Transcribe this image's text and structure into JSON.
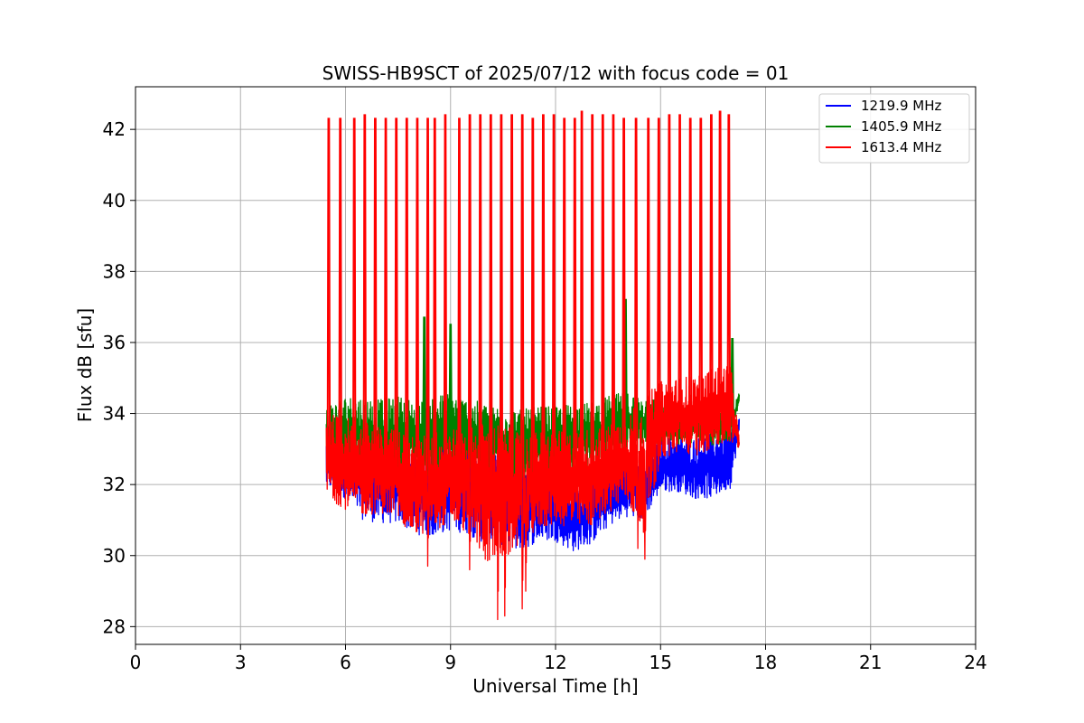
{
  "chart_data": {
    "type": "line",
    "title": "SWISS-HB9SCT of 2025/07/12 with focus code = 01",
    "xlabel": "Universal Time [h]",
    "ylabel": "Flux dB [sfu]",
    "xlim": [
      0,
      24
    ],
    "ylim": [
      27.5,
      43.2
    ],
    "xticks": [
      0,
      3,
      6,
      9,
      12,
      15,
      18,
      21,
      24
    ],
    "yticks": [
      28,
      30,
      32,
      34,
      36,
      38,
      40,
      42
    ],
    "grid": true,
    "legend_position": "top-right",
    "x_start": 5.45,
    "x_end": 17.25,
    "series": [
      {
        "name": "1219.9 MHz",
        "color": "#0000ff",
        "base_profile": {
          "x": [
            5.5,
            6.0,
            6.5,
            7.0,
            7.5,
            8.0,
            8.5,
            9.0,
            9.5,
            10.0,
            10.5,
            11.0,
            11.5,
            12.0,
            12.5,
            13.0,
            13.5,
            14.0,
            14.5,
            15.0,
            15.5,
            16.0,
            16.5,
            17.0,
            17.25
          ],
          "low": [
            31.9,
            31.6,
            31.0,
            30.9,
            30.9,
            30.6,
            30.5,
            30.7,
            30.6,
            30.3,
            30.3,
            30.1,
            30.4,
            30.4,
            30.1,
            30.3,
            30.8,
            31.1,
            31.0,
            31.8,
            31.8,
            31.6,
            31.6,
            31.9,
            33.4
          ],
          "high": [
            33.3,
            33.2,
            33.2,
            33.0,
            33.0,
            33.0,
            33.3,
            33.4,
            33.3,
            33.0,
            32.8,
            32.6,
            32.4,
            32.3,
            32.0,
            32.3,
            32.5,
            32.7,
            32.7,
            33.3,
            33.4,
            33.3,
            33.5,
            33.6,
            33.9
          ]
        }
      },
      {
        "name": "1405.9 MHz",
        "color": "#008000",
        "base_profile": {
          "x": [
            5.5,
            6.0,
            6.5,
            7.0,
            7.5,
            8.0,
            8.5,
            9.0,
            9.5,
            10.0,
            10.5,
            11.0,
            11.5,
            12.0,
            12.5,
            13.0,
            13.5,
            14.0,
            14.5,
            15.0,
            15.5,
            16.0,
            16.5,
            17.0,
            17.25
          ],
          "low": [
            32.4,
            32.3,
            32.3,
            32.0,
            32.0,
            32.0,
            32.3,
            32.5,
            32.4,
            32.3,
            32.2,
            32.1,
            32.2,
            32.3,
            32.3,
            32.4,
            32.6,
            32.8,
            32.9,
            33.2,
            33.1,
            33.2,
            33.1,
            33.2,
            34.3
          ],
          "high": [
            34.3,
            34.5,
            34.5,
            34.4,
            34.5,
            34.4,
            34.5,
            34.6,
            34.4,
            34.3,
            34.2,
            34.1,
            34.2,
            34.2,
            34.3,
            34.3,
            34.5,
            34.6,
            34.5,
            34.4,
            34.2,
            34.2,
            34.1,
            34.0,
            34.6
          ]
        },
        "spikes": [
          {
            "x": 8.25,
            "y": 36.7
          },
          {
            "x": 9.0,
            "y": 36.5
          },
          {
            "x": 14.0,
            "y": 37.2
          },
          {
            "x": 17.05,
            "y": 36.1
          }
        ]
      },
      {
        "name": "1613.4 MHz",
        "color": "#ff0000",
        "base_profile": {
          "x": [
            5.5,
            6.0,
            6.5,
            7.0,
            7.5,
            8.0,
            8.5,
            9.0,
            9.5,
            10.0,
            10.5,
            11.0,
            11.5,
            12.0,
            12.5,
            13.0,
            13.5,
            14.0,
            14.5,
            15.0,
            15.5,
            16.0,
            16.5,
            17.0,
            17.25
          ],
          "low": [
            31.6,
            31.3,
            31.1,
            31.2,
            31.0,
            30.5,
            30.7,
            30.9,
            30.6,
            29.8,
            29.8,
            30.3,
            30.7,
            30.9,
            30.7,
            30.8,
            31.2,
            31.5,
            30.6,
            32.6,
            32.9,
            32.8,
            33.0,
            33.1,
            33.0
          ],
          "high": [
            34.0,
            33.9,
            33.8,
            33.6,
            33.6,
            33.3,
            33.5,
            33.6,
            33.6,
            33.8,
            33.7,
            33.4,
            33.5,
            33.5,
            33.5,
            33.6,
            33.7,
            33.9,
            34.5,
            34.9,
            35.0,
            35.1,
            35.3,
            35.4,
            33.3
          ]
        },
        "dips": [
          {
            "x": 10.35,
            "y": 28.2
          },
          {
            "x": 10.55,
            "y": 28.3
          },
          {
            "x": 11.05,
            "y": 28.5
          },
          {
            "x": 11.15,
            "y": 29.0
          },
          {
            "x": 8.35,
            "y": 29.7
          },
          {
            "x": 9.55,
            "y": 29.6
          },
          {
            "x": 14.35,
            "y": 30.2
          },
          {
            "x": 14.55,
            "y": 29.9
          }
        ],
        "spikes": [
          {
            "x": 5.52,
            "y": 42.3
          },
          {
            "x": 5.85,
            "y": 42.3
          },
          {
            "x": 6.25,
            "y": 42.3
          },
          {
            "x": 6.55,
            "y": 42.4
          },
          {
            "x": 6.85,
            "y": 42.3
          },
          {
            "x": 7.15,
            "y": 42.3
          },
          {
            "x": 7.45,
            "y": 42.3
          },
          {
            "x": 7.75,
            "y": 42.3
          },
          {
            "x": 8.05,
            "y": 42.3
          },
          {
            "x": 8.35,
            "y": 42.3
          },
          {
            "x": 8.55,
            "y": 42.3
          },
          {
            "x": 8.85,
            "y": 42.4
          },
          {
            "x": 9.25,
            "y": 42.3
          },
          {
            "x": 9.55,
            "y": 42.4
          },
          {
            "x": 9.85,
            "y": 42.4
          },
          {
            "x": 10.15,
            "y": 42.4
          },
          {
            "x": 10.45,
            "y": 42.4
          },
          {
            "x": 10.75,
            "y": 42.4
          },
          {
            "x": 11.05,
            "y": 42.4
          },
          {
            "x": 11.35,
            "y": 42.3
          },
          {
            "x": 11.65,
            "y": 42.4
          },
          {
            "x": 11.95,
            "y": 42.4
          },
          {
            "x": 12.25,
            "y": 42.3
          },
          {
            "x": 12.55,
            "y": 42.3
          },
          {
            "x": 12.75,
            "y": 42.5
          },
          {
            "x": 13.05,
            "y": 42.4
          },
          {
            "x": 13.35,
            "y": 42.4
          },
          {
            "x": 13.65,
            "y": 42.4
          },
          {
            "x": 13.95,
            "y": 42.3
          },
          {
            "x": 14.3,
            "y": 42.3
          },
          {
            "x": 14.65,
            "y": 42.3
          },
          {
            "x": 14.95,
            "y": 42.3
          },
          {
            "x": 15.25,
            "y": 42.4
          },
          {
            "x": 15.55,
            "y": 42.4
          },
          {
            "x": 15.85,
            "y": 42.3
          },
          {
            "x": 16.15,
            "y": 42.3
          },
          {
            "x": 16.45,
            "y": 42.4
          },
          {
            "x": 16.7,
            "y": 42.5
          },
          {
            "x": 16.95,
            "y": 42.4
          }
        ]
      }
    ]
  }
}
